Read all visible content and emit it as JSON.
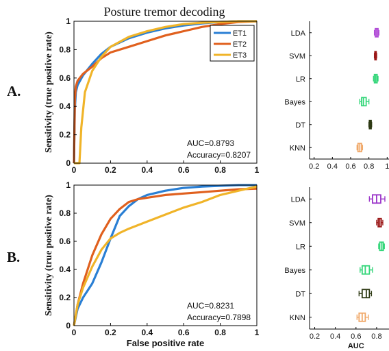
{
  "title": "Posture tremor decoding",
  "panel_labels": [
    "A.",
    "B."
  ],
  "colors": {
    "ET1": "#2a7fd4",
    "ET2": "#e0601e",
    "ET3": "#f0b429"
  },
  "chart_data": [
    {
      "id": "roc-A",
      "type": "line",
      "title": "Posture tremor decoding",
      "xlabel": "",
      "ylabel": "Sensitivity (true positive rate)",
      "xlim": [
        0,
        1
      ],
      "ylim": [
        0,
        1
      ],
      "x_ticks": [
        "0",
        "0.2",
        "0.4",
        "0.6",
        "0.8",
        "1"
      ],
      "y_ticks": [
        "0",
        "0.2",
        "0.4",
        "0.6",
        "0.8",
        "1"
      ],
      "legend": [
        "ET1",
        "ET2",
        "ET3"
      ],
      "legend_position": "top-right",
      "annotations": [
        "AUC=0.8793",
        "Accuracy=0.8207"
      ],
      "series": [
        {
          "name": "ET1",
          "x": [
            0,
            0.005,
            0.01,
            0.02,
            0.05,
            0.1,
            0.15,
            0.2,
            0.3,
            0.4,
            0.5,
            0.6,
            0.7,
            0.8,
            0.9,
            1
          ],
          "y": [
            0,
            0.38,
            0.5,
            0.55,
            0.62,
            0.7,
            0.77,
            0.82,
            0.88,
            0.92,
            0.95,
            0.97,
            0.985,
            0.995,
            1,
            1
          ]
        },
        {
          "name": "ET2",
          "x": [
            0,
            0.005,
            0.01,
            0.02,
            0.05,
            0.1,
            0.15,
            0.2,
            0.3,
            0.4,
            0.5,
            0.6,
            0.7,
            0.8,
            0.9,
            1
          ],
          "y": [
            0,
            0.45,
            0.54,
            0.58,
            0.63,
            0.68,
            0.74,
            0.78,
            0.82,
            0.86,
            0.9,
            0.93,
            0.96,
            0.98,
            0.995,
            1
          ]
        },
        {
          "name": "ET3",
          "x": [
            0,
            0.03,
            0.04,
            0.06,
            0.1,
            0.15,
            0.2,
            0.3,
            0.4,
            0.5,
            0.6,
            0.7,
            0.8,
            0.9,
            1
          ],
          "y": [
            0,
            0,
            0.25,
            0.5,
            0.65,
            0.75,
            0.82,
            0.89,
            0.93,
            0.96,
            0.98,
            0.99,
            0.995,
            1,
            1
          ]
        }
      ]
    },
    {
      "id": "box-A",
      "type": "box",
      "xlabel": "",
      "x_ticks": [
        "0.2",
        "0.4",
        "0.6",
        "0.8",
        "1"
      ],
      "xlim": [
        0.15,
        1.02
      ],
      "categories": [
        "LDA",
        "SVM",
        "LR",
        "Bayes",
        "DT",
        "KNN"
      ],
      "colors": [
        "#b04bd6",
        "#9b1818",
        "#35d67a",
        "#35d67a",
        "#2e3a14",
        "#f0a868"
      ],
      "stats": [
        {
          "min": 0.86,
          "q1": 0.87,
          "median": 0.885,
          "q3": 0.9,
          "max": 0.91
        },
        {
          "min": 0.86,
          "q1": 0.865,
          "median": 0.875,
          "q3": 0.88,
          "max": 0.885
        },
        {
          "min": 0.85,
          "q1": 0.86,
          "median": 0.875,
          "q3": 0.89,
          "max": 0.9
        },
        {
          "min": 0.7,
          "q1": 0.72,
          "median": 0.74,
          "q3": 0.77,
          "max": 0.8
        },
        {
          "min": 0.8,
          "q1": 0.805,
          "median": 0.815,
          "q3": 0.825,
          "max": 0.83
        },
        {
          "min": 0.67,
          "q1": 0.68,
          "median": 0.7,
          "q3": 0.72,
          "max": 0.73
        }
      ]
    },
    {
      "id": "roc-B",
      "type": "line",
      "xlabel": "False positive rate",
      "ylabel": "Sensitivity (true positive rate)",
      "xlim": [
        0,
        1
      ],
      "ylim": [
        0,
        1
      ],
      "x_ticks": [
        "0",
        "0.2",
        "0.4",
        "0.6",
        "0.8",
        "1"
      ],
      "y_ticks": [
        "0",
        "0.2",
        "0.4",
        "0.6",
        "0.8",
        "1"
      ],
      "annotations": [
        "AUC=0.8231",
        "Accuracy=0.7898"
      ],
      "series": [
        {
          "name": "ET1",
          "x": [
            0,
            0.02,
            0.05,
            0.1,
            0.15,
            0.2,
            0.25,
            0.3,
            0.35,
            0.4,
            0.5,
            0.6,
            0.7,
            0.8,
            0.9,
            1
          ],
          "y": [
            0,
            0.12,
            0.2,
            0.3,
            0.45,
            0.62,
            0.78,
            0.85,
            0.9,
            0.93,
            0.96,
            0.98,
            0.99,
            0.995,
            1,
            1
          ]
        },
        {
          "name": "ET2",
          "x": [
            0,
            0.02,
            0.05,
            0.1,
            0.15,
            0.2,
            0.25,
            0.3,
            0.35,
            0.4,
            0.5,
            0.6,
            0.7,
            0.8,
            0.9,
            1
          ],
          "y": [
            0,
            0.15,
            0.3,
            0.5,
            0.65,
            0.76,
            0.83,
            0.88,
            0.9,
            0.91,
            0.93,
            0.94,
            0.95,
            0.96,
            0.97,
            0.975
          ]
        },
        {
          "name": "ET3",
          "x": [
            0,
            0.02,
            0.05,
            0.1,
            0.15,
            0.2,
            0.25,
            0.3,
            0.4,
            0.5,
            0.6,
            0.7,
            0.8,
            0.9,
            1
          ],
          "y": [
            0,
            0.15,
            0.27,
            0.42,
            0.54,
            0.62,
            0.66,
            0.69,
            0.74,
            0.79,
            0.84,
            0.88,
            0.93,
            0.96,
            0.99
          ]
        }
      ]
    },
    {
      "id": "box-B",
      "type": "box",
      "xlabel": "AUC",
      "x_ticks": [
        "0.2",
        "0.4",
        "0.6",
        "0.8"
      ],
      "xlim": [
        0.15,
        0.92
      ],
      "categories": [
        "LDA",
        "SVM",
        "LR",
        "Bayes",
        "DT",
        "KNN"
      ],
      "colors": [
        "#9b35c9",
        "#9b1818",
        "#35d67a",
        "#35d67a",
        "#2e3a14",
        "#f0a868"
      ],
      "stats": [
        {
          "min": 0.73,
          "q1": 0.76,
          "median": 0.8,
          "q3": 0.84,
          "max": 0.88
        },
        {
          "min": 0.8,
          "q1": 0.815,
          "median": 0.83,
          "q3": 0.845,
          "max": 0.86
        },
        {
          "min": 0.82,
          "q1": 0.83,
          "median": 0.85,
          "q3": 0.865,
          "max": 0.875
        },
        {
          "min": 0.64,
          "q1": 0.66,
          "median": 0.69,
          "q3": 0.73,
          "max": 0.76
        },
        {
          "min": 0.63,
          "q1": 0.66,
          "median": 0.7,
          "q3": 0.73,
          "max": 0.75
        },
        {
          "min": 0.61,
          "q1": 0.63,
          "median": 0.66,
          "q3": 0.69,
          "max": 0.72
        }
      ]
    }
  ]
}
